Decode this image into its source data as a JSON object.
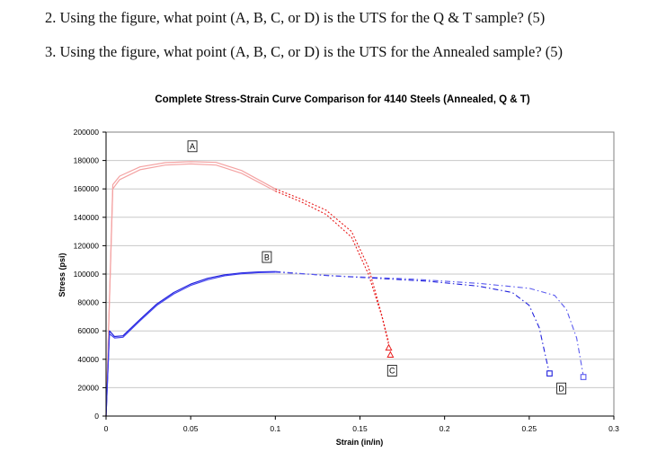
{
  "questions": [
    "2. Using the figure, what point (A, B, C, or D) is the UTS for the Q & T sample? (5)",
    "3. Using the figure, what point (A, B, C, or D) is the UTS for the Annealed sample? (5)"
  ],
  "chart_data": {
    "type": "line",
    "title": "Complete Stress-Strain Curve Comparison for 4140 Steels (Annealed, Q & T)",
    "xlabel": "Strain (in/in)",
    "ylabel": "Stress (psi)",
    "xlim": [
      0,
      0.3
    ],
    "ylim": [
      0,
      200000
    ],
    "xticks": [
      0,
      0.05,
      0.1,
      0.15,
      0.2,
      0.25,
      0.3
    ],
    "xtick_labels": [
      "0",
      "0.05",
      "0.1",
      "0.15",
      "0.2",
      "0.25",
      "0.3"
    ],
    "yticks": [
      0,
      20000,
      40000,
      60000,
      80000,
      100000,
      120000,
      140000,
      160000,
      180000,
      200000
    ],
    "ytick_labels": [
      "0",
      "20000",
      "40000",
      "60000",
      "80000",
      "100000",
      "120000",
      "140000",
      "160000",
      "180000",
      "200000"
    ],
    "grid": true,
    "series": [
      {
        "color": "#f4a3a3",
        "style": "solid",
        "points": [
          [
            0,
            0
          ],
          [
            0.004,
            163000
          ],
          [
            0.008,
            169000
          ],
          [
            0.02,
            175500
          ],
          [
            0.035,
            178500
          ],
          [
            0.05,
            179200
          ],
          [
            0.065,
            178700
          ],
          [
            0.08,
            173000
          ],
          [
            0.1,
            160000
          ]
        ]
      },
      {
        "color": "#f4a3a3",
        "style": "solid",
        "points": [
          [
            0,
            0
          ],
          [
            0.004,
            160000
          ],
          [
            0.008,
            166500
          ],
          [
            0.02,
            173500
          ],
          [
            0.035,
            176800
          ],
          [
            0.05,
            177600
          ],
          [
            0.065,
            176800
          ],
          [
            0.08,
            171000
          ],
          [
            0.1,
            158500
          ]
        ]
      },
      {
        "color": "#e81c1c",
        "style": "dotted",
        "points": [
          [
            0.1,
            160000
          ],
          [
            0.115,
            153000
          ],
          [
            0.13,
            145000
          ],
          [
            0.145,
            130000
          ],
          [
            0.155,
            105000
          ],
          [
            0.162,
            75000
          ],
          [
            0.167,
            52000
          ]
        ]
      },
      {
        "color": "#e81c1c",
        "style": "dotted",
        "points": [
          [
            0.1,
            158500
          ],
          [
            0.115,
            151000
          ],
          [
            0.13,
            142000
          ],
          [
            0.145,
            126000
          ],
          [
            0.155,
            100000
          ],
          [
            0.163,
            70000
          ],
          [
            0.168,
            45000
          ]
        ]
      },
      {
        "color": "#2222dd",
        "style": "solid",
        "points": [
          [
            0,
            0
          ],
          [
            0.002,
            60000
          ],
          [
            0.005,
            56000
          ],
          [
            0.01,
            56500
          ],
          [
            0.02,
            68000
          ],
          [
            0.03,
            79000
          ],
          [
            0.04,
            87000
          ],
          [
            0.05,
            93000
          ],
          [
            0.06,
            97000
          ],
          [
            0.07,
            99500
          ],
          [
            0.08,
            100800
          ],
          [
            0.09,
            101500
          ],
          [
            0.1,
            101800
          ]
        ]
      },
      {
        "color": "#4444ee",
        "style": "solid",
        "points": [
          [
            0,
            0
          ],
          [
            0.002,
            58000
          ],
          [
            0.005,
            55000
          ],
          [
            0.01,
            55500
          ],
          [
            0.02,
            67000
          ],
          [
            0.03,
            78000
          ],
          [
            0.04,
            86000
          ],
          [
            0.05,
            92000
          ],
          [
            0.06,
            96000
          ],
          [
            0.07,
            98800
          ],
          [
            0.08,
            100200
          ],
          [
            0.09,
            101000
          ],
          [
            0.1,
            101300
          ]
        ]
      },
      {
        "color": "#2222dd",
        "style": "dashdot",
        "points": [
          [
            0.1,
            101800
          ],
          [
            0.13,
            99000
          ],
          [
            0.16,
            97000
          ],
          [
            0.19,
            95000
          ],
          [
            0.22,
            91500
          ],
          [
            0.24,
            87000
          ],
          [
            0.25,
            78000
          ],
          [
            0.256,
            62000
          ],
          [
            0.26,
            40000
          ],
          [
            0.262,
            30000
          ]
        ]
      },
      {
        "color": "#5a5aee",
        "style": "dashdot",
        "points": [
          [
            0.1,
            101300
          ],
          [
            0.14,
            98500
          ],
          [
            0.18,
            96500
          ],
          [
            0.22,
            93500
          ],
          [
            0.25,
            90000
          ],
          [
            0.265,
            85000
          ],
          [
            0.272,
            75000
          ],
          [
            0.278,
            55000
          ],
          [
            0.281,
            35000
          ],
          [
            0.282,
            28000
          ]
        ]
      }
    ],
    "markers": [
      {
        "shape": "triangle",
        "color": "#e81c1c",
        "x": 0.167,
        "y": 48000
      },
      {
        "shape": "triangle",
        "color": "#e81c1c",
        "x": 0.168,
        "y": 43000
      },
      {
        "shape": "square",
        "color": "#2222dd",
        "x": 0.262,
        "y": 30000
      },
      {
        "shape": "square",
        "color": "#5a5aee",
        "x": 0.282,
        "y": 27500
      }
    ],
    "annotations": [
      {
        "text": "A",
        "x": 0.051,
        "y": 190000
      },
      {
        "text": "B",
        "x": 0.095,
        "y": 112000
      },
      {
        "text": "C",
        "x": 0.169,
        "y": 32000
      },
      {
        "text": "D",
        "x": 0.269,
        "y": 19500
      }
    ]
  }
}
